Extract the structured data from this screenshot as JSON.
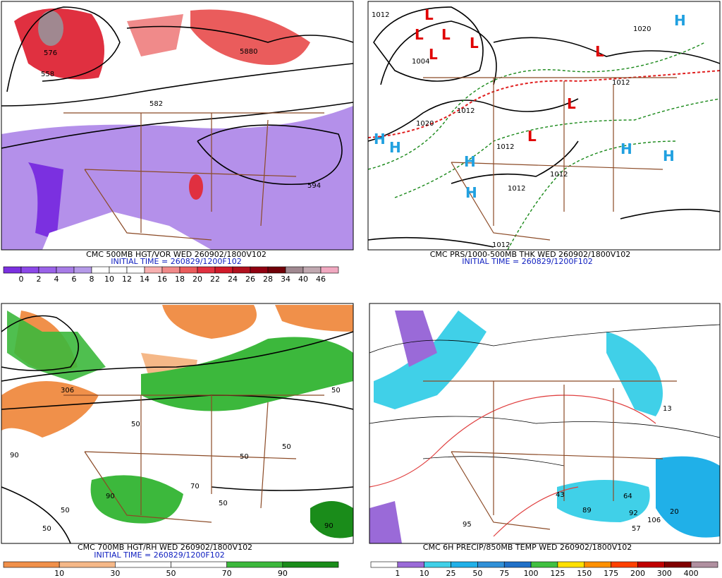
{
  "panels": [
    {
      "title": "CMC 500MB HGT/VOR WED 260902/1800V102",
      "initial_time": "INITIAL TIME = 260829/1200F102",
      "contour_labels": [
        "576",
        "558",
        "582",
        "5880",
        "594"
      ],
      "colorbar": {
        "labels": [
          0,
          2,
          4,
          6,
          8,
          10,
          12,
          14,
          16,
          18,
          20,
          22,
          24,
          26,
          28,
          34,
          40,
          46
        ],
        "colors": [
          "#7b30e0",
          "#8c48e8",
          "#9a62e8",
          "#a77ce6",
          "#b59ae8",
          "#ffffff",
          "#ffffff",
          "#ffffff",
          "#f7b0b0",
          "#f08a8a",
          "#ea5c5c",
          "#e03040",
          "#d01a2a",
          "#b0101e",
          "#900010",
          "#700008",
          "#a08890",
          "#c0a8b0",
          "#f0a8c0"
        ]
      }
    },
    {
      "title": "CMC PRS/1000-500MB THK WED 260902/1800V102",
      "initial_time": "INITIAL TIME = 260829/1200F102",
      "contour_labels": [
        "1012",
        "1020",
        "1004",
        "1012",
        "1012",
        "1020",
        "1012",
        "1012",
        "1012",
        "1012"
      ],
      "pressure_centers": [
        "L",
        "L",
        "L",
        "L",
        "L",
        "L",
        "L",
        "L",
        "H",
        "H",
        "H",
        "H",
        "H",
        "H",
        "H"
      ]
    },
    {
      "title": "CMC 700MB HGT/RH WED 260902/1800V102",
      "initial_time": "INITIAL TIME = 260829/1200F102",
      "contour_labels": [
        "306",
        "50",
        "90",
        "50",
        "50",
        "70",
        "50",
        "90",
        "50",
        "90",
        "50",
        "50"
      ],
      "colorbar": {
        "labels": [
          10,
          30,
          50,
          70,
          90
        ],
        "colors": [
          "#f0904a",
          "#f5b888",
          "#ffffff",
          "#ffffff",
          "#3cb83c",
          "#1a8c1a"
        ]
      }
    },
    {
      "title": "CMC 6H PRECIP/850MB TEMP WED 260902/1800V102",
      "contour_labels": [
        "43",
        "89",
        "64",
        "92",
        "57",
        "106",
        "13",
        "95",
        "20"
      ],
      "colorbar": {
        "labels": [
          1,
          10,
          25,
          50,
          75,
          100,
          125,
          150,
          175,
          200,
          300,
          400
        ],
        "colors": [
          "#ffffff",
          "#9a6ad8",
          "#40d0e8",
          "#20b0e8",
          "#3090d8",
          "#2070c8",
          "#40c040",
          "#ffe000",
          "#ff9000",
          "#ff4000",
          "#c00000",
          "#800000",
          "#b090a0"
        ]
      }
    }
  ]
}
